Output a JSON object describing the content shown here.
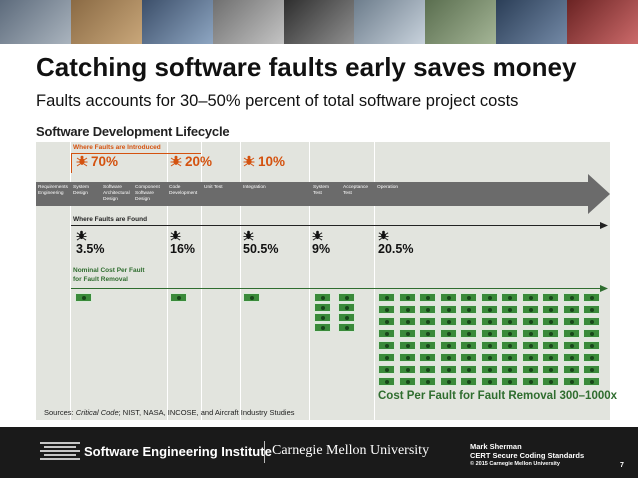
{
  "slide": {
    "title": "Catching software faults early saves money",
    "subtitle": "Faults accounts for 30–50% percent of total software project costs",
    "page_number": "7",
    "sources_prefix": "Sources: ",
    "sources_italic": "Critical Code",
    "sources_rest": "; NIST, NASA, INCOSE, and Aircraft Industry Studies"
  },
  "diagram": {
    "title": "Software Development Lifecycle",
    "introduced_label": "Where Faults are Introduced",
    "introduced": [
      "70%",
      "20%",
      "10%"
    ],
    "found_label": "Where Faults are Found",
    "found": [
      "3.5%",
      "16%",
      "50.5%",
      "9%",
      "20.5%"
    ],
    "cost_label_1": "Nominal Cost Per Fault",
    "cost_label_2": "for Fault Removal",
    "cost_note": "Cost Per Fault for Fault Removal 300–1000x",
    "phases": [
      {
        "l1": "Requirements",
        "l2": "Engineering",
        "l3": ""
      },
      {
        "l1": "System",
        "l2": "Design",
        "l3": ""
      },
      {
        "l1": "Software",
        "l2": "Architectural",
        "l3": "Design"
      },
      {
        "l1": "Component",
        "l2": "Software",
        "l3": "Design"
      },
      {
        "l1": "Code",
        "l2": "Development",
        "l3": ""
      },
      {
        "l1": "Unit Test",
        "l2": "",
        "l3": ""
      },
      {
        "l1": "Integration",
        "l2": "",
        "l3": ""
      },
      {
        "l1": "System",
        "l2": "Test",
        "l3": ""
      },
      {
        "l1": "Acceptance",
        "l2": "Test",
        "l3": ""
      },
      {
        "l1": "Operation",
        "l2": "",
        "l3": ""
      }
    ]
  },
  "footer": {
    "sei": "Software Engineering Institute",
    "cmu": "Carnegie Mellon University",
    "presenter": "Mark Sherman",
    "program": "CERT Secure Coding Standards",
    "copyright": "© 2015 Carnegie Mellon University"
  },
  "colors": {
    "orange": "#d4520f",
    "green": "#2f6d2f",
    "column_bg": "#e2e4de",
    "arrow": "#6b6b6b"
  }
}
